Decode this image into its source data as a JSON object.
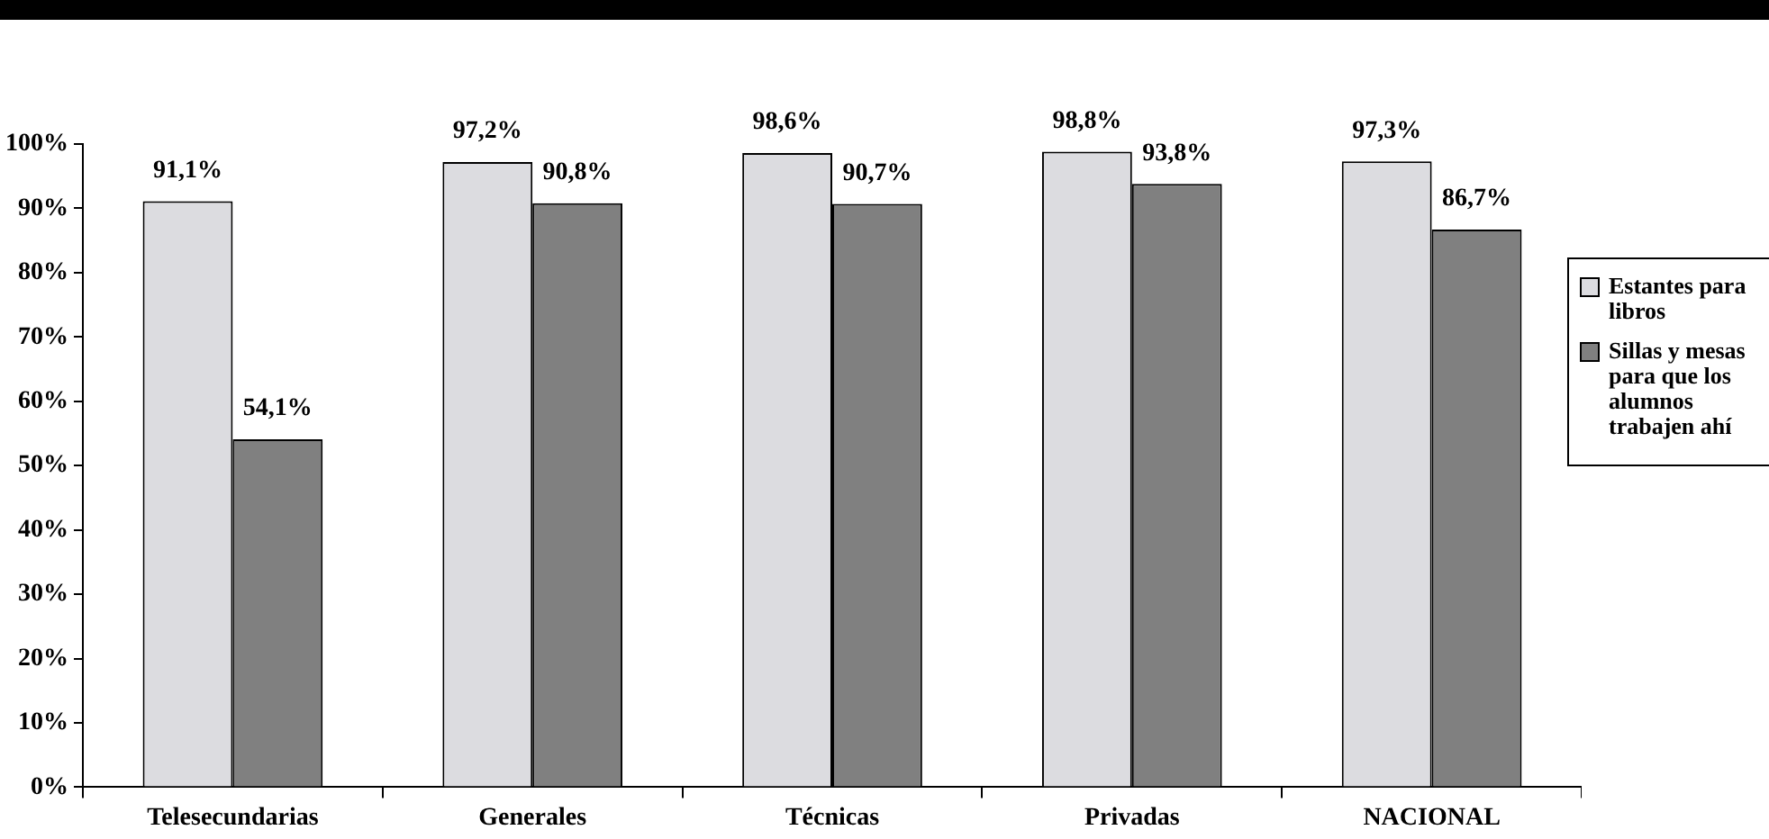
{
  "chart_data": {
    "type": "bar",
    "categories": [
      "Telesecundarias",
      "Generales",
      "Técnicas",
      "Privadas",
      "NACIONAL"
    ],
    "series": [
      {
        "name": "Estantes para libros",
        "color": "#dcdce0",
        "values": [
          91.1,
          97.2,
          98.6,
          98.8,
          97.3
        ]
      },
      {
        "name": "Sillas y mesas para que los alumnos trabajen ahí",
        "color": "#808080",
        "values": [
          54.1,
          90.8,
          90.7,
          93.8,
          86.7
        ]
      }
    ],
    "value_labels": [
      [
        "91,1%",
        "97,2%",
        "98,6%",
        "98,8%",
        "97,3%"
      ],
      [
        "54,1%",
        "90,8%",
        "90,7%",
        "93,8%",
        "86,7%"
      ]
    ],
    "ylim": [
      0,
      100
    ],
    "yticks": [
      {
        "value": 0,
        "label": "0%"
      },
      {
        "value": 10,
        "label": "10%"
      },
      {
        "value": 20,
        "label": "20%"
      },
      {
        "value": 30,
        "label": "30%"
      },
      {
        "value": 40,
        "label": "40%"
      },
      {
        "value": 50,
        "label": "50%"
      },
      {
        "value": 60,
        "label": "60%"
      },
      {
        "value": 70,
        "label": "70%"
      },
      {
        "value": 80,
        "label": "80%"
      },
      {
        "value": 90,
        "label": "90%"
      },
      {
        "value": 100,
        "label": "100%"
      }
    ],
    "grid": false,
    "legend": "right"
  }
}
